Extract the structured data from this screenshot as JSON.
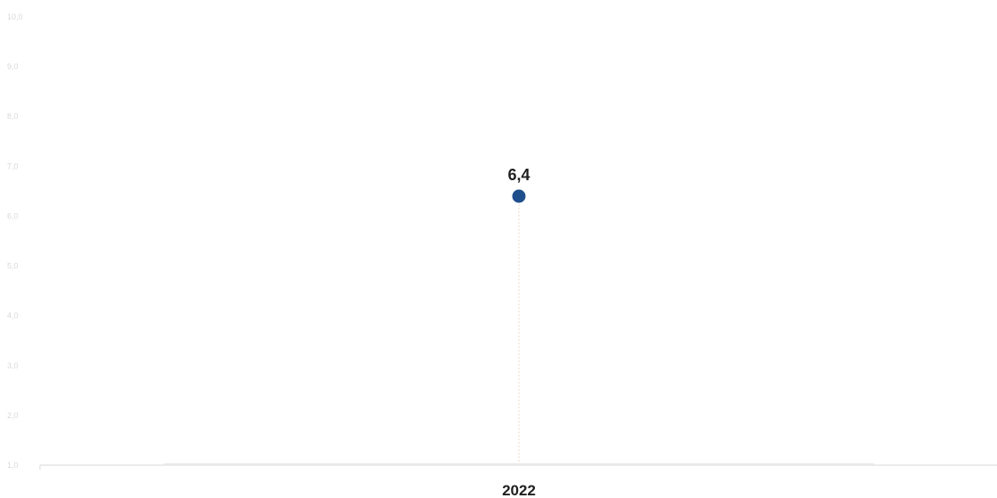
{
  "chart_data": {
    "type": "scatter",
    "categories": [
      "2022"
    ],
    "values": [
      6.4
    ],
    "value_labels": [
      "6,4"
    ],
    "ylim": [
      1,
      10
    ],
    "y_ticks": [
      1,
      2,
      3,
      4,
      5,
      6,
      7,
      8,
      9,
      10
    ],
    "y_tick_labels": [
      "1,0",
      "2,0",
      "3,0",
      "4,0",
      "5,0",
      "6,0",
      "7,0",
      "8,0",
      "9,0",
      "10,0"
    ],
    "grid": false,
    "legend": "none",
    "colors": {
      "marker": "#1f4e8c",
      "drop_line": "#f3e6d8",
      "axis": "#d9d9d9",
      "baseline_bar": "#e8e8e8"
    }
  }
}
